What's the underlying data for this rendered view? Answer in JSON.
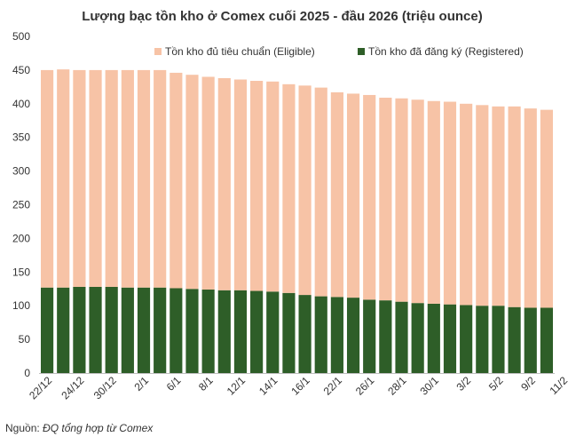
{
  "chart_data": {
    "type": "bar",
    "stacked": true,
    "title": "Lượng bạc tồn kho ở Comex cuối 2025 - đầu 2026 (triệu ounce)",
    "xlabel": "",
    "ylabel": "",
    "ylim": [
      0,
      500
    ],
    "yticks": [
      0,
      50,
      100,
      150,
      200,
      250,
      300,
      350,
      400,
      450,
      500
    ],
    "grid": false,
    "legend_position": "top-right",
    "x_tick_labels": [
      "22/12",
      "24/12",
      "30/12",
      "2/1",
      "6/1",
      "8/1",
      "12/1",
      "14/1",
      "16/1",
      "22/1",
      "26/1",
      "28/1",
      "30/1",
      "3/2",
      "5/2",
      "9/2",
      "11/2"
    ],
    "series": [
      {
        "name": "Tồn kho đã đăng ký (Registered)",
        "color": "#2e5e28",
        "values": [
          127,
          127,
          128,
          128,
          128,
          127,
          127,
          127,
          126,
          125,
          124,
          123,
          123,
          122,
          121,
          119,
          116,
          114,
          113,
          112,
          109,
          108,
          106,
          104,
          103,
          102,
          101,
          100,
          100,
          98,
          97,
          97
        ]
      },
      {
        "name": "Tồn kho đủ tiêu chuẩn (Eligible)",
        "color": "#f7c3a6",
        "values": [
          323,
          324,
          322,
          322,
          322,
          323,
          323,
          323,
          320,
          318,
          316,
          315,
          313,
          312,
          312,
          310,
          311,
          310,
          304,
          303,
          304,
          301,
          302,
          302,
          301,
          301,
          299,
          298,
          296,
          298,
          296,
          294
        ]
      }
    ]
  },
  "source": {
    "label": "Nguồn:",
    "name": "ĐQ tổng hợp từ Comex"
  }
}
